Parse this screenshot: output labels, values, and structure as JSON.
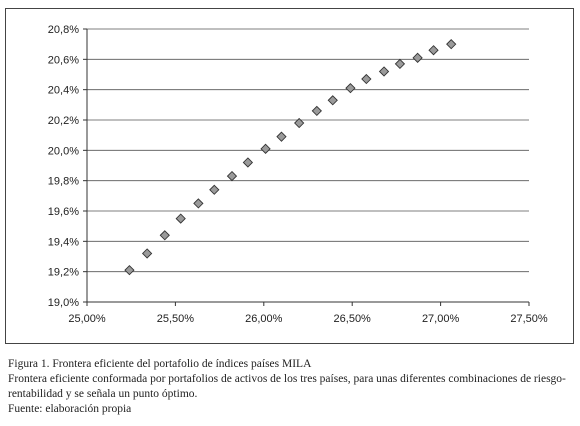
{
  "chart_data": {
    "type": "scatter",
    "marker": "diamond",
    "marker_color": "#9a9a9a",
    "marker_stroke": "#333333",
    "grid": "horizontal",
    "xlim": [
      0.25,
      0.275
    ],
    "ylim": [
      0.19,
      0.209
    ],
    "x_ticks": [
      "25,00%",
      "25,50%",
      "26,00%",
      "26,50%",
      "27,00%",
      "27,50%"
    ],
    "y_ticks": [
      "19,0%",
      "19,2%",
      "19,4%",
      "19,6%",
      "19,8%",
      "20,0%",
      "20,2%",
      "20,4%",
      "20,6%",
      "20,8%"
    ],
    "points": [
      [
        0.2524,
        0.1921
      ],
      [
        0.2534,
        0.1932
      ],
      [
        0.2544,
        0.1944
      ],
      [
        0.2553,
        0.1955
      ],
      [
        0.2563,
        0.1965
      ],
      [
        0.2572,
        0.1974
      ],
      [
        0.2582,
        0.1983
      ],
      [
        0.2591,
        0.1992
      ],
      [
        0.2601,
        0.2001
      ],
      [
        0.261,
        0.2009
      ],
      [
        0.262,
        0.2018
      ],
      [
        0.263,
        0.2026
      ],
      [
        0.2639,
        0.2033
      ],
      [
        0.2649,
        0.2041
      ],
      [
        0.2658,
        0.2047
      ],
      [
        0.2668,
        0.2052
      ],
      [
        0.2677,
        0.2057
      ],
      [
        0.2687,
        0.2061
      ],
      [
        0.2696,
        0.2066
      ],
      [
        0.2706,
        0.207
      ]
    ]
  },
  "caption": {
    "figure_title": "Figura 1. Frontera eficiente del portafolio de índices países MILA",
    "description_line1": "Frontera eficiente conformada por portafolios de activos de los tres países, para unas diferentes combinaciones de riesgo-",
    "description_line2": "rentabilidad y se señala un punto óptimo.",
    "source": "Fuente: elaboración propia"
  }
}
